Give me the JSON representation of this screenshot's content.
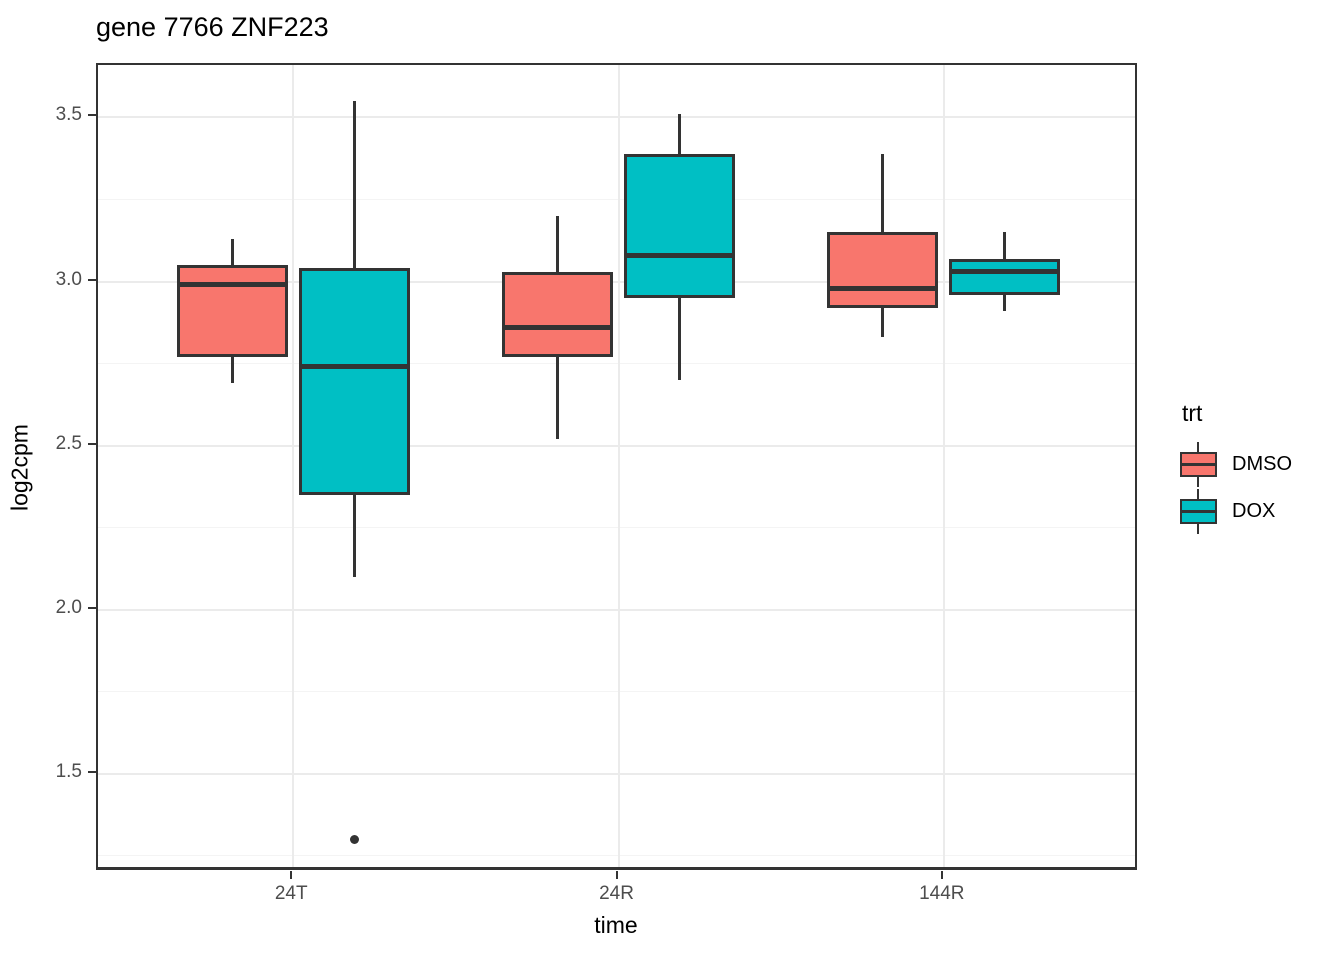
{
  "colors": {
    "dmso": "#F8766D",
    "dox": "#00BFC4",
    "box_stroke": "#333333",
    "grid_major": "#ebebeb",
    "grid_minor": "#f4f4f4",
    "axis_text": "#4d4d4d",
    "background": "#ffffff"
  },
  "chart_data": {
    "type": "boxplot",
    "title": "gene 7766 ZNF223",
    "xlabel": "time",
    "ylabel": "log2cpm",
    "categories": [
      "24T",
      "24R",
      "144R"
    ],
    "series": [
      {
        "name": "DMSO",
        "color": "#F8766D",
        "boxes": [
          {
            "category": "24T",
            "whisker_low": 2.69,
            "q1": 2.77,
            "median": 2.99,
            "q3": 3.05,
            "whisker_high": 3.13,
            "outliers": []
          },
          {
            "category": "24R",
            "whisker_low": 2.52,
            "q1": 2.77,
            "median": 2.86,
            "q3": 3.03,
            "whisker_high": 3.2,
            "outliers": []
          },
          {
            "category": "144R",
            "whisker_low": 2.83,
            "q1": 2.92,
            "median": 2.98,
            "q3": 3.15,
            "whisker_high": 3.39,
            "outliers": []
          }
        ]
      },
      {
        "name": "DOX",
        "color": "#00BFC4",
        "boxes": [
          {
            "category": "24T",
            "whisker_low": 2.1,
            "q1": 2.35,
            "median": 2.74,
            "q3": 3.04,
            "whisker_high": 3.55,
            "outliers": [
              1.3
            ]
          },
          {
            "category": "24R",
            "whisker_low": 2.7,
            "q1": 2.95,
            "median": 3.08,
            "q3": 3.39,
            "whisker_high": 3.51,
            "outliers": []
          },
          {
            "category": "144R",
            "whisker_low": 2.91,
            "q1": 2.96,
            "median": 3.03,
            "q3": 3.07,
            "whisker_high": 3.15,
            "outliers": []
          }
        ]
      }
    ],
    "y_ticks": [
      3.5,
      3.0,
      2.5,
      2.0,
      1.5
    ],
    "y_minor_ticks": [
      3.25,
      2.75,
      2.25,
      1.75,
      1.25
    ],
    "ylim": [
      1.2,
      3.66
    ],
    "grid": true,
    "legend": {
      "title": "trt",
      "position": "right",
      "entries": [
        "DMSO",
        "DOX"
      ]
    }
  }
}
